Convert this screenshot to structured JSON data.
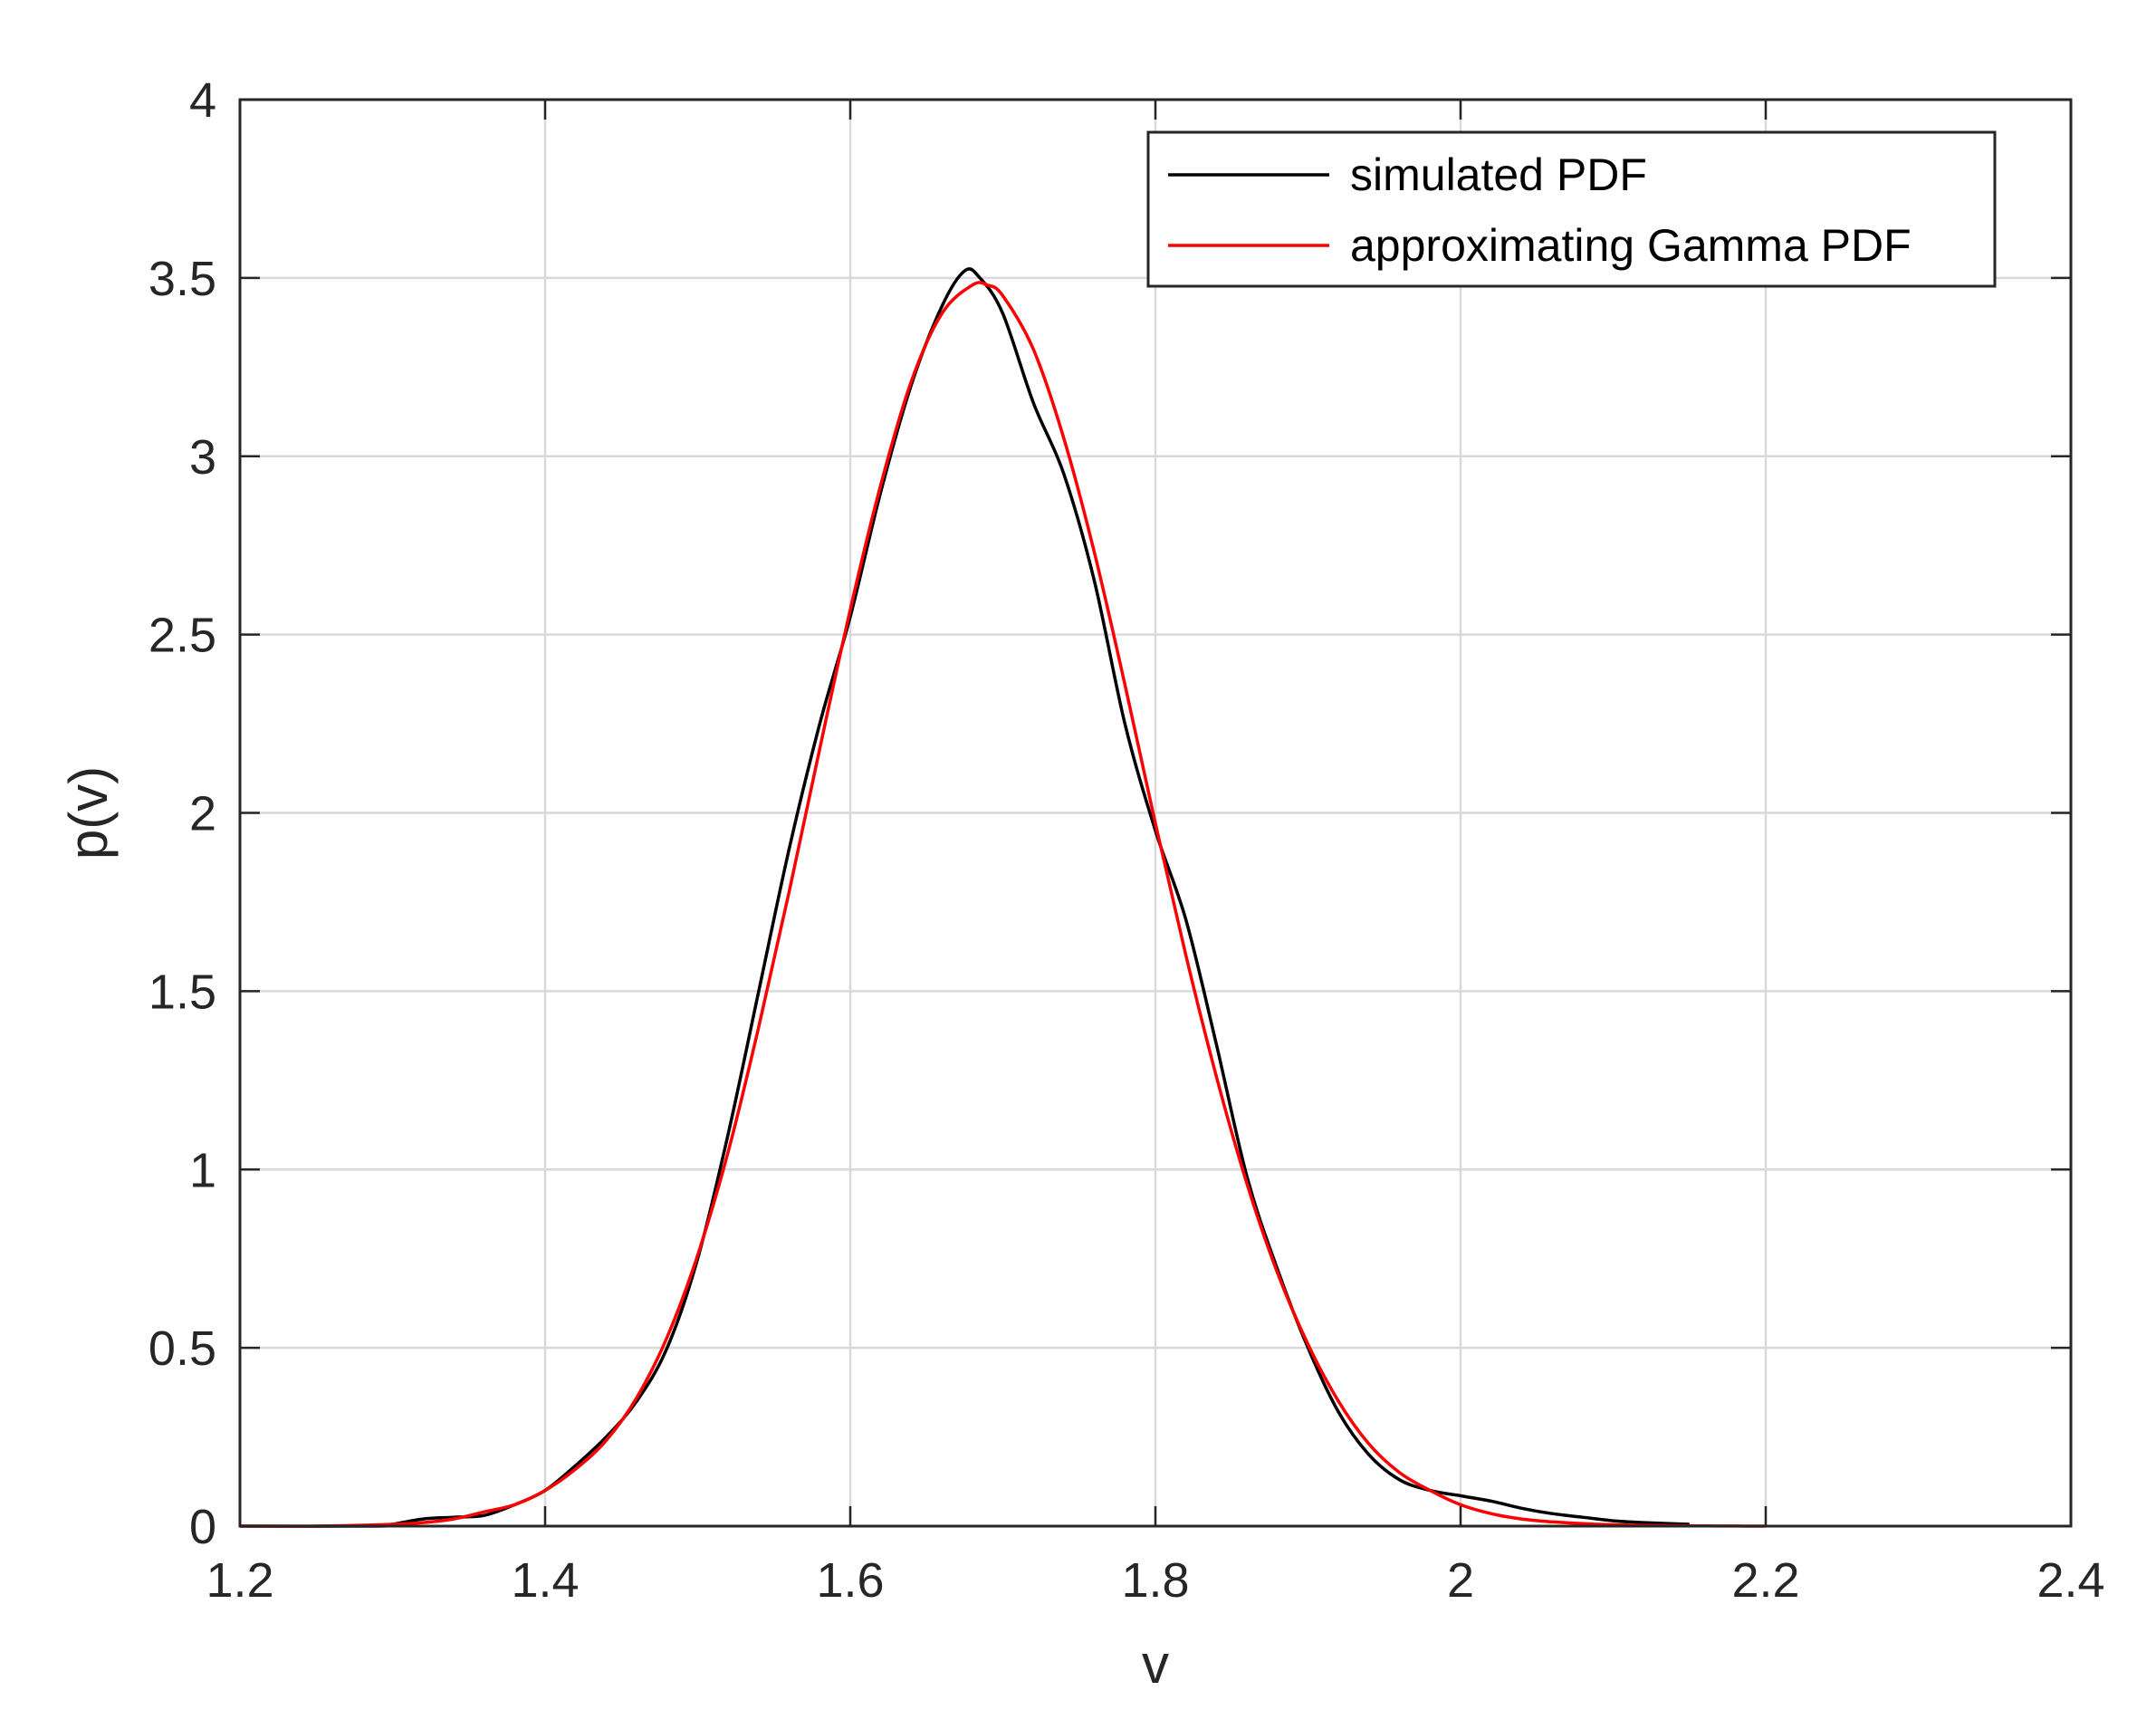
{
  "chart_data": {
    "type": "line",
    "title": "",
    "xlabel": "v",
    "ylabel": "p(v)",
    "xlim": [
      1.2,
      2.4
    ],
    "ylim": [
      0,
      4
    ],
    "grid": true,
    "legend_position": "top-right",
    "xticks": [
      1.2,
      1.4,
      1.6,
      1.8,
      2.0,
      2.2,
      2.4
    ],
    "xtick_labels": [
      "1.2",
      "1.4",
      "1.6",
      "1.8",
      "2",
      "2.2",
      "2.4"
    ],
    "yticks": [
      0,
      0.5,
      1,
      1.5,
      2,
      2.5,
      3,
      3.5,
      4
    ],
    "ytick_labels": [
      "0",
      "0.5",
      "1",
      "1.5",
      "2",
      "2.5",
      "3",
      "3.5",
      "4"
    ],
    "series": [
      {
        "name": "simulated PDF",
        "color": "#000000",
        "x": [
          1.2,
          1.29,
          1.3,
          1.32,
          1.34,
          1.36,
          1.38,
          1.4,
          1.42,
          1.44,
          1.46,
          1.48,
          1.5,
          1.52,
          1.54,
          1.56,
          1.58,
          1.6,
          1.62,
          1.64,
          1.66,
          1.675,
          1.685,
          1.7,
          1.72,
          1.74,
          1.76,
          1.78,
          1.8,
          1.82,
          1.84,
          1.86,
          1.88,
          1.9,
          1.92,
          1.94,
          1.96,
          1.98,
          2.0,
          2.02,
          2.04,
          2.06,
          2.08,
          2.1,
          2.12,
          2.15
        ],
        "y": [
          0,
          0,
          0.005,
          0.02,
          0.025,
          0.03,
          0.06,
          0.1,
          0.17,
          0.25,
          0.35,
          0.5,
          0.75,
          1.1,
          1.5,
          1.9,
          2.25,
          2.55,
          2.9,
          3.2,
          3.42,
          3.52,
          3.5,
          3.4,
          3.15,
          2.95,
          2.65,
          2.25,
          1.95,
          1.7,
          1.35,
          0.98,
          0.72,
          0.5,
          0.32,
          0.2,
          0.13,
          0.1,
          0.085,
          0.07,
          0.05,
          0.035,
          0.025,
          0.015,
          0.01,
          0.005
        ]
      },
      {
        "name": "approximating Gamma PDF",
        "color": "#ff0000",
        "x": [
          1.2,
          1.25,
          1.3,
          1.32,
          1.34,
          1.36,
          1.38,
          1.4,
          1.42,
          1.44,
          1.46,
          1.48,
          1.5,
          1.52,
          1.54,
          1.56,
          1.58,
          1.6,
          1.62,
          1.64,
          1.66,
          1.68,
          1.69,
          1.7,
          1.72,
          1.74,
          1.76,
          1.78,
          1.8,
          1.82,
          1.84,
          1.86,
          1.88,
          1.9,
          1.92,
          1.94,
          1.96,
          1.98,
          2.0,
          2.02,
          2.04,
          2.06,
          2.08,
          2.1,
          2.12,
          2.14,
          2.16,
          2.18,
          2.2
        ],
        "y": [
          0,
          0,
          0.005,
          0.01,
          0.02,
          0.04,
          0.06,
          0.1,
          0.16,
          0.24,
          0.36,
          0.53,
          0.76,
          1.05,
          1.4,
          1.78,
          2.18,
          2.57,
          2.92,
          3.21,
          3.4,
          3.48,
          3.48,
          3.45,
          3.3,
          3.05,
          2.73,
          2.36,
          1.97,
          1.6,
          1.26,
          0.96,
          0.71,
          0.51,
          0.35,
          0.23,
          0.15,
          0.1,
          0.06,
          0.035,
          0.02,
          0.012,
          0.007,
          0.004,
          0.002,
          0.001,
          0.0005,
          0.0002,
          0
        ]
      }
    ]
  }
}
